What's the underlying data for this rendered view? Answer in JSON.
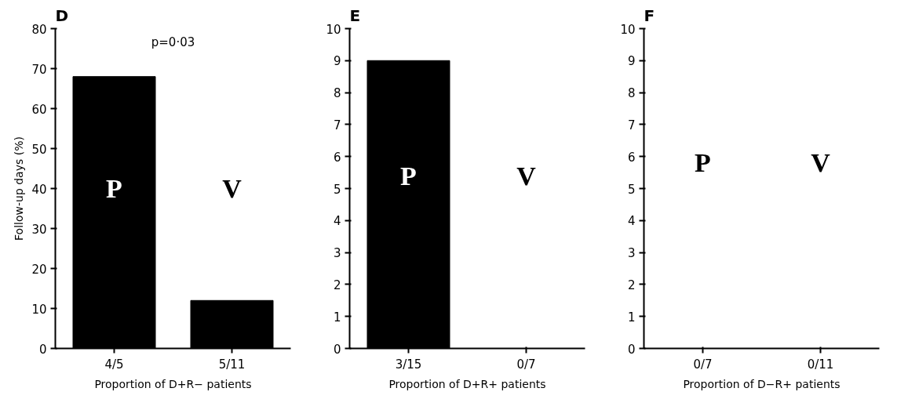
{
  "chart_data": [
    {
      "type": "bar",
      "title": "D",
      "ylabel": "Follow-up days (%)",
      "xlabel": "Proportion of D+R− patients",
      "categories": [
        "4/5",
        "5/11"
      ],
      "values": [
        68,
        12
      ],
      "color": "#000000",
      "ylim": [
        0,
        80
      ],
      "yticks": [
        0,
        10,
        20,
        30,
        40,
        50,
        60,
        70,
        80
      ],
      "grid": false,
      "annotations": [
        "P",
        "V",
        "p=0·03"
      ]
    },
    {
      "type": "bar",
      "title": "E",
      "xlabel": "Proportion of D+R+ patients",
      "categories": [
        "3/15",
        "0/7"
      ],
      "values": [
        9,
        0
      ],
      "color": "#000000",
      "ylim": [
        0,
        10
      ],
      "yticks": [
        0,
        1,
        2,
        3,
        4,
        5,
        6,
        7,
        8,
        9,
        10
      ],
      "grid": false,
      "annotations": [
        "P",
        "V"
      ]
    },
    {
      "type": "bar",
      "title": "F",
      "xlabel": "Proportion of D−R+ patients",
      "categories": [
        "0/7",
        "0/11"
      ],
      "values": [
        0,
        0
      ],
      "color": "#000000",
      "ylim": [
        0,
        10
      ],
      "yticks": [
        0,
        1,
        2,
        3,
        4,
        5,
        6,
        7,
        8,
        9,
        10
      ],
      "grid": false,
      "annotations": [
        "P",
        "V"
      ]
    }
  ]
}
